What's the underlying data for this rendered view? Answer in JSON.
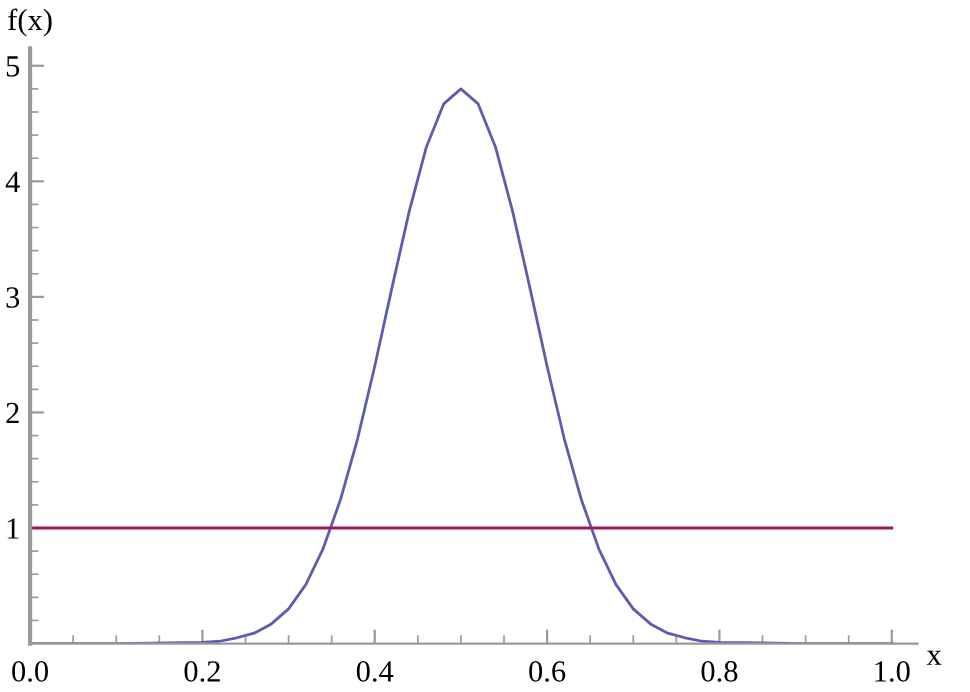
{
  "chart_data": {
    "type": "line",
    "xlabel": "x",
    "ylabel": "f(x)",
    "xlim": [
      0,
      1.03
    ],
    "ylim": [
      0,
      5.15
    ],
    "xticks": [
      {
        "value": 0,
        "label": "0.0"
      },
      {
        "value": 0.05,
        "label": null
      },
      {
        "value": 0.1,
        "label": null
      },
      {
        "value": 0.15,
        "label": null
      },
      {
        "value": 0.2,
        "label": "0.2"
      },
      {
        "value": 0.25,
        "label": null
      },
      {
        "value": 0.3,
        "label": null
      },
      {
        "value": 0.35,
        "label": null
      },
      {
        "value": 0.4,
        "label": "0.4"
      },
      {
        "value": 0.45,
        "label": null
      },
      {
        "value": 0.5,
        "label": null
      },
      {
        "value": 0.55,
        "label": null
      },
      {
        "value": 0.6,
        "label": "0.6"
      },
      {
        "value": 0.65,
        "label": null
      },
      {
        "value": 0.7,
        "label": null
      },
      {
        "value": 0.75,
        "label": null
      },
      {
        "value": 0.8,
        "label": "0.8"
      },
      {
        "value": 0.85,
        "label": null
      },
      {
        "value": 0.9,
        "label": null
      },
      {
        "value": 0.95,
        "label": null
      },
      {
        "value": 1,
        "label": "1.0"
      }
    ],
    "yticks": [
      {
        "value": 0.2,
        "label": null
      },
      {
        "value": 0.4,
        "label": null
      },
      {
        "value": 0.6,
        "label": null
      },
      {
        "value": 0.8,
        "label": null
      },
      1,
      {
        "value": 1.2,
        "label": null
      },
      {
        "value": 1.4,
        "label": null
      },
      {
        "value": 1.6,
        "label": null
      },
      {
        "value": 1.8,
        "label": null
      },
      2,
      {
        "value": 2.2,
        "label": null
      },
      {
        "value": 2.4,
        "label": null
      },
      {
        "value": 2.6,
        "label": null
      },
      {
        "value": 2.8,
        "label": null
      },
      3,
      {
        "value": 3.2,
        "label": null
      },
      {
        "value": 3.4,
        "label": null
      },
      {
        "value": 3.6,
        "label": null
      },
      {
        "value": 3.8,
        "label": null
      },
      4,
      {
        "value": 4.2,
        "label": null
      },
      {
        "value": 4.4,
        "label": null
      },
      {
        "value": 4.6,
        "label": null
      },
      {
        "value": 4.8,
        "label": null
      },
      5
    ],
    "grid": false,
    "marker": "none",
    "line_style": "solid",
    "series": [
      {
        "color": "#5c5cb0",
        "x": [
          0,
          0.1,
          0.2,
          0.22,
          0.24,
          0.26,
          0.28,
          0.3,
          0.32,
          0.34,
          0.36,
          0.38,
          0.4,
          0.42,
          0.44,
          0.46,
          0.48,
          0.5,
          0.52,
          0.54,
          0.56,
          0.58,
          0.6,
          0.62,
          0.64,
          0.66,
          0.68,
          0.7,
          0.72,
          0.74,
          0.76,
          0.78,
          0.8,
          0.9,
          1
        ],
        "values": [
          0,
          0,
          0.01,
          0.02,
          0.05,
          0.09,
          0.17,
          0.3,
          0.51,
          0.82,
          1.24,
          1.77,
          2.4,
          3.08,
          3.74,
          4.3,
          4.67,
          4.8,
          4.67,
          4.3,
          3.74,
          3.08,
          2.4,
          1.77,
          1.24,
          0.82,
          0.51,
          0.3,
          0.17,
          0.09,
          0.05,
          0.02,
          0.01,
          0,
          0
        ]
      },
      {
        "color": "#9b1c5e",
        "x": [
          0,
          1
        ],
        "values": [
          1,
          1
        ]
      }
    ]
  }
}
